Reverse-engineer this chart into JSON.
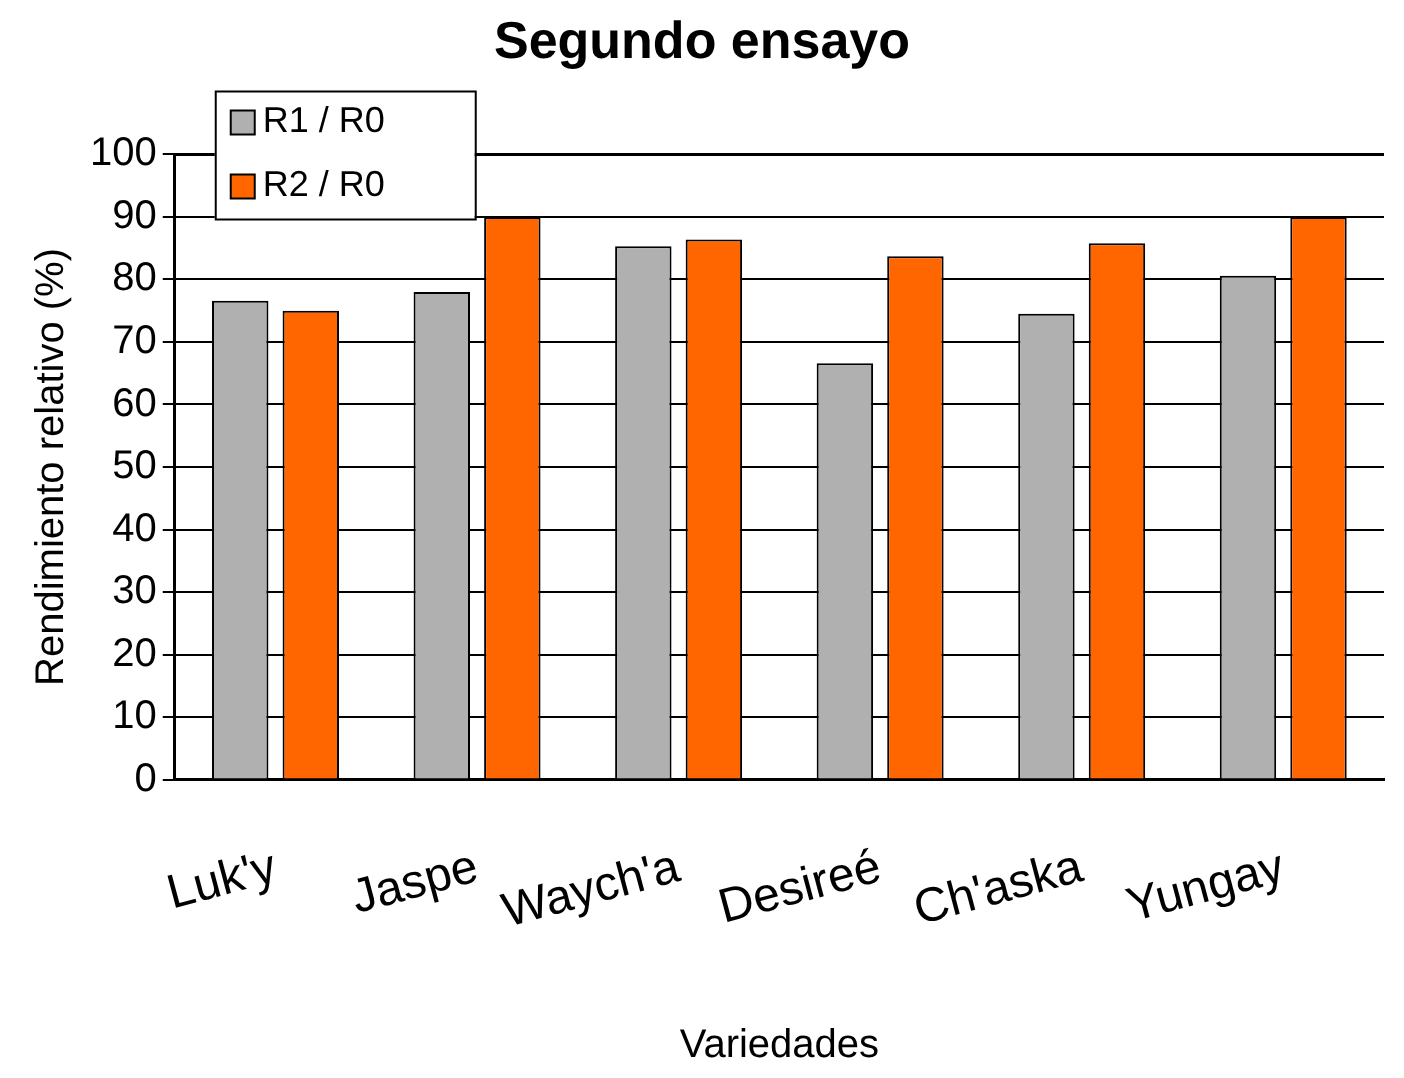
{
  "chart_data": {
    "type": "bar",
    "title": "Segundo ensayo",
    "xlabel": "Variedades",
    "ylabel": "Rendimiento relativo (%)",
    "categories": [
      "Luk'y",
      "Jaspe",
      "Waych'a",
      "Desireé",
      "Ch'aska",
      "Yungay"
    ],
    "series": [
      {
        "name": "R1 / R0",
        "color": "#b0b0b0",
        "values": [
          76.6,
          78.0,
          85.3,
          66.6,
          74.5,
          80.6
        ]
      },
      {
        "name": "R2 / R0",
        "color": "#ff6600",
        "values": [
          75.0,
          90.0,
          86.4,
          83.7,
          85.8,
          90.0
        ]
      }
    ],
    "ylim": [
      0,
      100
    ],
    "yticks": [
      0,
      10,
      20,
      30,
      40,
      50,
      60,
      70,
      80,
      90,
      100
    ],
    "grid": "y",
    "legend": "top left"
  }
}
